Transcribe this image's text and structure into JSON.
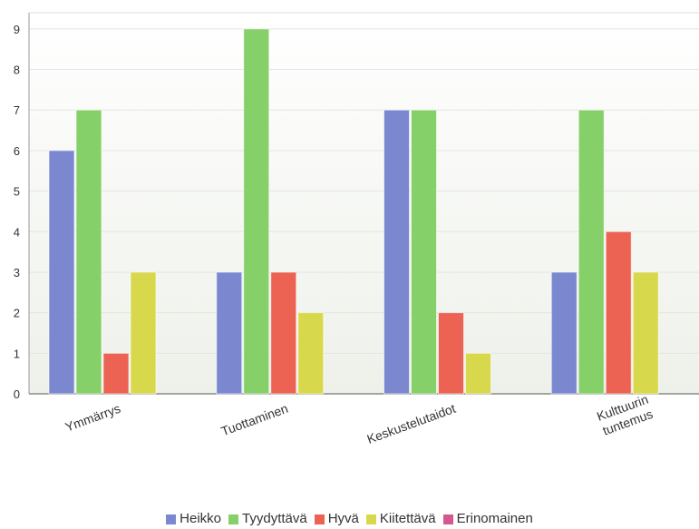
{
  "chart_data": {
    "type": "bar",
    "categories": [
      "Ymmärrys",
      "Tuottaminen",
      "Keskustelutaidot",
      "Kulttuurin tuntemus"
    ],
    "series": [
      {
        "name": "Heikko",
        "color": "#7b88d0",
        "values": [
          6,
          3,
          7,
          3
        ]
      },
      {
        "name": "Tyydyttävä",
        "color": "#86d06a",
        "values": [
          7,
          9,
          7,
          7
        ]
      },
      {
        "name": "Hyvä",
        "color": "#ec6354",
        "values": [
          1,
          3,
          2,
          4
        ]
      },
      {
        "name": "Kiitettävä",
        "color": "#d8d84c",
        "values": [
          3,
          2,
          1,
          3
        ]
      },
      {
        "name": "Erinomainen",
        "color": "#d4588e",
        "values": [
          0,
          0,
          0,
          0
        ]
      }
    ],
    "yticks": [
      0,
      1,
      2,
      3,
      4,
      5,
      6,
      7,
      8,
      9
    ],
    "ylim": [
      0,
      9.4
    ],
    "grid": true,
    "legend_position": "bottom"
  }
}
